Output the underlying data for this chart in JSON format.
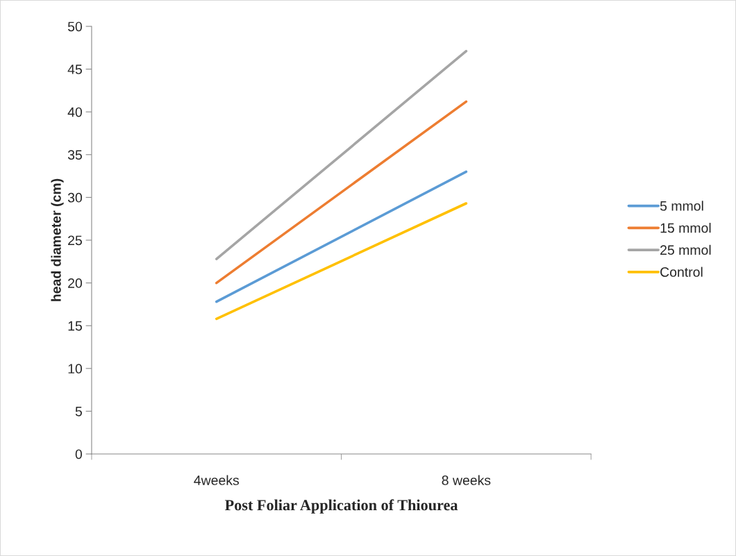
{
  "chart_data": {
    "type": "line",
    "xlabel": "Post Foliar Application of Thiourea",
    "ylabel": "head diameter (cm)",
    "categories": [
      "4weeks",
      "8 weeks"
    ],
    "series": [
      {
        "name": "5 mmol",
        "color": "#5b9bd5",
        "values": [
          17.8,
          33.0
        ]
      },
      {
        "name": "15 mmol",
        "color": "#ed7d31",
        "values": [
          20.0,
          41.2
        ]
      },
      {
        "name": "25 mmol",
        "color": "#a5a5a5",
        "values": [
          22.8,
          47.1
        ]
      },
      {
        "name": "Control",
        "color": "#ffc000",
        "values": [
          15.8,
          29.3
        ]
      }
    ],
    "ylim": [
      0,
      50
    ],
    "yticks": [
      0,
      5,
      10,
      15,
      20,
      25,
      30,
      35,
      40,
      45,
      50
    ],
    "grid": false,
    "legend": "right",
    "marker": "none",
    "line_style": "solid"
  }
}
